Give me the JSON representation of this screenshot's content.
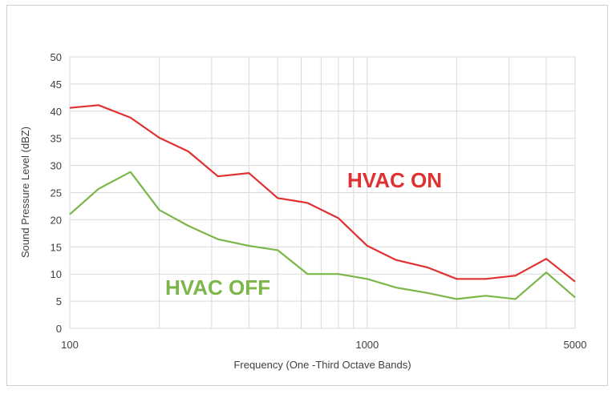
{
  "chart_data": {
    "type": "line",
    "title": "",
    "xlabel": "Frequency (One -Third Octave Bands)",
    "ylabel": "Sound Pressure Level (dBZ)",
    "xscale": "log",
    "xlim": [
      100,
      5000
    ],
    "ylim": [
      0,
      50
    ],
    "xticks": [
      100,
      1000,
      5000
    ],
    "xtick_labels": [
      "100",
      "1000",
      "5000"
    ],
    "yticks": [
      0,
      5,
      10,
      15,
      20,
      25,
      30,
      35,
      40,
      45,
      50
    ],
    "ytick_labels": [
      "0",
      "5",
      "10",
      "15",
      "20",
      "25",
      "30",
      "35",
      "40",
      "45",
      "50"
    ],
    "grid": true,
    "legend": "none",
    "x": [
      100,
      125,
      160,
      200,
      250,
      315,
      400,
      500,
      630,
      800,
      1000,
      1250,
      1600,
      2000,
      2500,
      3150,
      4000,
      5000
    ],
    "series": [
      {
        "name": "HVAC ON",
        "color": "#e03030",
        "values": [
          40.6,
          41.1,
          38.8,
          35.1,
          32.6,
          28.0,
          28.6,
          24.0,
          23.1,
          20.3,
          15.2,
          12.6,
          11.2,
          9.1,
          9.1,
          9.7,
          12.8,
          8.6
        ]
      },
      {
        "name": "HVAC OFF",
        "color": "#7ab648",
        "values": [
          21.0,
          25.7,
          28.8,
          21.8,
          18.9,
          16.4,
          15.2,
          14.4,
          10.0,
          10.0,
          9.1,
          7.5,
          6.5,
          5.4,
          6.0,
          5.4,
          10.3,
          5.7
        ]
      }
    ]
  }
}
